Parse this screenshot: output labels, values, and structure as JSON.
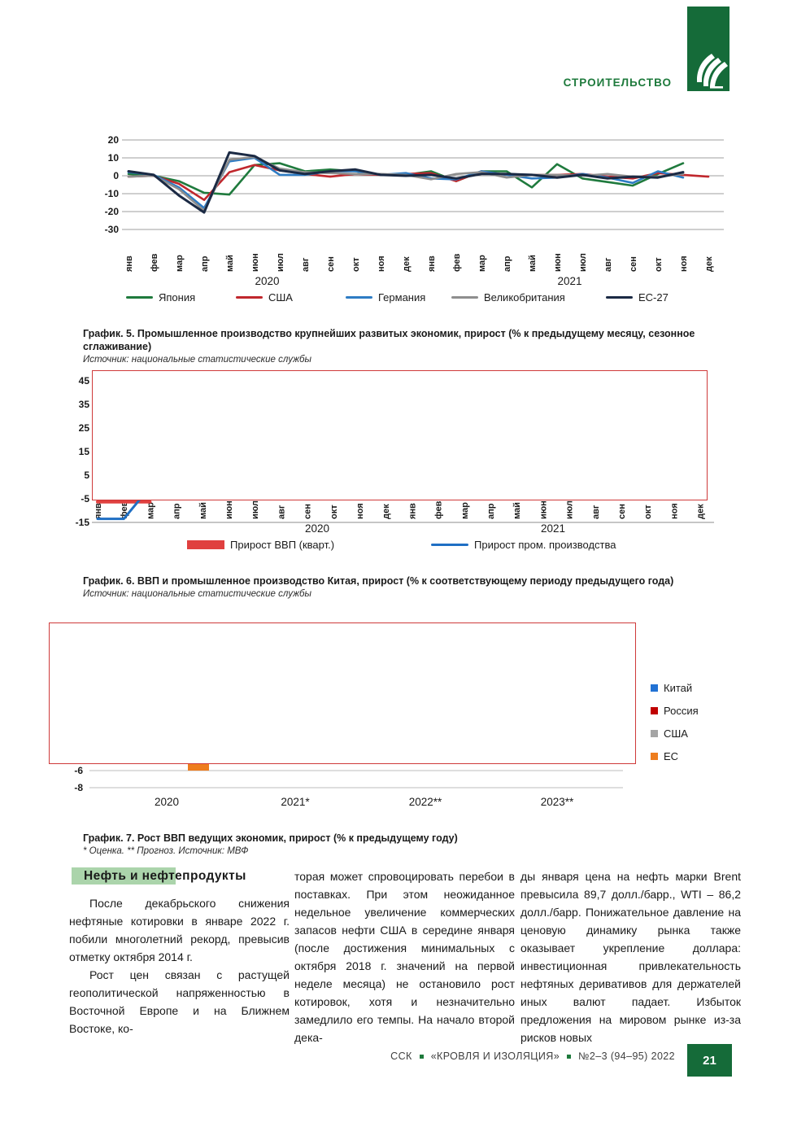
{
  "page": {
    "header": {
      "section_label": "СТРОИТЕЛЬСТВО"
    },
    "footer": {
      "items": [
        "ССК",
        "«КРОВЛЯ И ИЗОЛЯЦИЯ»",
        "№2–3 (94–95) 2022"
      ],
      "page_number": "21"
    }
  },
  "colors": {
    "brand_green": "#1e7a3c",
    "logo_green": "#156b39",
    "heading_highlight": "#abd4ab",
    "redaction_border": "#cf3a3a",
    "grid_gray": "#9f9f9f"
  },
  "figures": {
    "fig5": {
      "title": "График. 5. Промышленное производство крупнейших развитых экономик, прирост (% к предыдущему месяцу, сезонное сглаживание)",
      "source": "Источник: национальные статистические службы"
    },
    "fig6": {
      "title": "График. 6. ВВП и промышленное производство Китая, прирост (% к соответствующему периоду предыдущего года)",
      "source": "Источник: национальные статистические службы"
    },
    "fig7": {
      "title": "График. 7. Рост ВВП ведущих экономик, прирост (% к предыдущему году)",
      "source": "* Оценка. ** Прогноз. Источник: МВФ"
    }
  },
  "chart_data": [
    {
      "id": "fig5",
      "type": "line",
      "title": "Промышленное производство крупнейших развитых экономик, прирост (% к предыдущему месяцу, сезонное сглаживание)",
      "x_labels": [
        "янв",
        "фев",
        "мар",
        "апр",
        "май",
        "июн",
        "июл",
        "авг",
        "сен",
        "окт",
        "ноя",
        "дек",
        "янв",
        "фев",
        "мар",
        "апр",
        "май",
        "июн",
        "июл",
        "авг",
        "сен",
        "окт",
        "ноя",
        "дек"
      ],
      "year_labels": [
        {
          "text": "2020",
          "index_center": 5.5
        },
        {
          "text": "2021",
          "index_center": 17.5
        }
      ],
      "ylim": [
        -30,
        20
      ],
      "yticks": [
        20,
        10,
        0,
        -10,
        -20,
        -30
      ],
      "grid": true,
      "legend_position": "bottom",
      "series": [
        {
          "name": "Япония",
          "color": "#1f7a3d",
          "values": [
            1,
            0,
            -3,
            -9.5,
            -10.5,
            6,
            7,
            2.5,
            3.5,
            2.5,
            0.5,
            0.5,
            2.5,
            -3,
            2.5,
            2.5,
            -6.5,
            6.5,
            -1.5,
            -3.5,
            -5.5,
            1,
            7,
            null
          ]
        },
        {
          "name": "США",
          "color": "#c0272d",
          "values": [
            -0.5,
            0,
            -4.5,
            -13.5,
            2,
            6,
            3,
            1,
            -0.5,
            1,
            0.5,
            1,
            1.5,
            -3,
            2.5,
            0.5,
            0.5,
            0.5,
            1,
            -0.5,
            -1.5,
            1.5,
            0.5,
            -0.5
          ]
        },
        {
          "name": "Германия",
          "color": "#2e7cc4",
          "values": [
            2,
            0.5,
            -6.5,
            -18,
            8,
            10,
            0.5,
            0.5,
            2.5,
            2.5,
            0.5,
            1.5,
            -1.5,
            -2,
            2.5,
            0.5,
            -1.5,
            -1,
            1,
            -1,
            -4,
            2.5,
            -1,
            null
          ]
        },
        {
          "name": "Великобритания",
          "color": "#8e8e8e",
          "values": [
            -0.5,
            0,
            -7.5,
            -19.5,
            9,
            10.5,
            4,
            2,
            1.5,
            1,
            1,
            0.5,
            -2,
            1,
            2,
            -1,
            0.5,
            0.5,
            0,
            1,
            -0.5,
            -0.5,
            1,
            null
          ]
        },
        {
          "name": "ЕС-27",
          "color": "#1b2a44",
          "values": [
            2.5,
            0.5,
            -11,
            -20.5,
            13,
            11,
            3,
            1,
            2.5,
            3.5,
            0.5,
            0,
            0.5,
            -1.5,
            1,
            1,
            0.5,
            -1,
            0.5,
            -1.5,
            -0.5,
            -1,
            2,
            null
          ]
        }
      ]
    },
    {
      "id": "fig6",
      "type": "line",
      "title": "ВВП и промышленное производство Китая, прирост (% к соответствующему периоду предыдущего года)",
      "note": "Plot area is covered by a white placeholder box with a red border; only fragments near the lower-left corner of the lines are visible.",
      "x_labels": [
        "янв",
        "фев",
        "мар",
        "апр",
        "май",
        "июн",
        "июл",
        "авг",
        "сен",
        "окт",
        "ноя",
        "дек",
        "янв",
        "фев",
        "мар",
        "апр",
        "май",
        "июн",
        "июл",
        "авг",
        "сен",
        "окт",
        "ноя",
        "дек"
      ],
      "year_labels": [
        {
          "text": "2020"
        },
        {
          "text": "2021"
        }
      ],
      "yticks": [
        45,
        35,
        25,
        15,
        5,
        -5,
        -15
      ],
      "series": [
        {
          "name": "Прирост ВВП (кварт.)",
          "color": "#e0403f",
          "swatch": "bar",
          "visible_values": [
            {
              "x": 0,
              "y": -6.3
            },
            {
              "x": 2,
              "y": -6.3
            }
          ]
        },
        {
          "name": "Прирост пром. производства",
          "color": "#1f6fc4",
          "swatch": "line",
          "visible_values": [
            {
              "x": 0,
              "y": -13.5
            },
            {
              "x": 1,
              "y": -13.5
            },
            {
              "x": 2.3,
              "y": 4
            }
          ]
        }
      ]
    },
    {
      "id": "fig7",
      "type": "bar",
      "title": "Рост ВВП ведущих экономик, прирост (% к предыдущему году)",
      "note": "Plot area is covered by a white placeholder box with a red border; only the EU 2020 bar tip reaching −6 and the −6 / −8 gridlines are visible.",
      "categories": [
        "2020",
        "2021*",
        "2022**",
        "2023**"
      ],
      "yticks_visible": [
        -6,
        -8
      ],
      "series": [
        {
          "name": "Китай",
          "color": "#2272d4",
          "values": [
            null,
            null,
            null,
            null
          ]
        },
        {
          "name": "Россия",
          "color": "#c00000",
          "values": [
            null,
            null,
            null,
            null
          ]
        },
        {
          "name": "США",
          "color": "#a5a5a5",
          "values": [
            null,
            null,
            null,
            null
          ]
        },
        {
          "name": "ЕС",
          "color": "#ee7d1e",
          "values": [
            -6,
            null,
            null,
            null
          ]
        }
      ]
    }
  ],
  "article": {
    "heading": "Нефть и нефтепродукты",
    "col1_p1": "После декабрьского снижения нефтяные котировки в январе 2022 г. побили многолетний рекорд, превысив отметку октября 2014 г.",
    "col1_p2": "Рост цен связан с растущей геополитической напряженностью в Восточной Европе и на Ближнем Востоке, ко-",
    "col2_p1": "торая может спровоцировать перебои в поставках. При этом неожиданное недельное увеличение коммерческих запасов нефти США в середине января (после достижения минимальных с октября 2018 г. значений на первой неделе месяца) не остановило рост котировок, хотя и незначительно замедлило его темпы. На начало второй дека-",
    "col3_p1": "ды января цена на нефть марки Brent превысила 89,7 долл./барр., WTI – 86,2 долл./барр. Понижательное давление на ценовую динамику рынка также оказывает укрепление доллара: инвестиционная привлекательность нефтяных деривативов для держателей иных валют падает. Избыток предложения на мировом рынке из-за рисков новых"
  }
}
